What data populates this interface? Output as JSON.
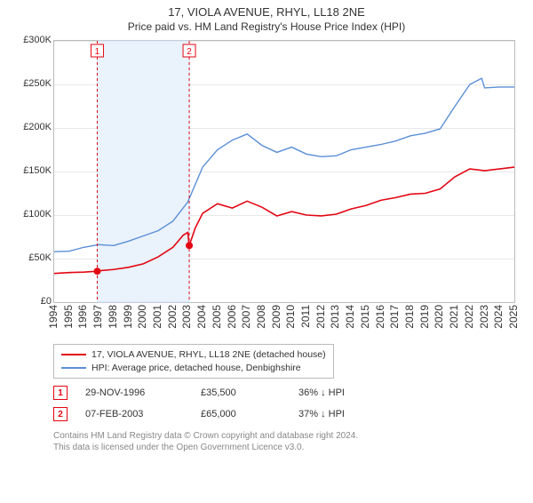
{
  "title": "17, VIOLA AVENUE, RHYL, LL18 2NE",
  "subtitle": "Price paid vs. HM Land Registry's House Price Index (HPI)",
  "chart": {
    "type": "line",
    "background_color": "#ffffff",
    "grid_color": "#e8e8e8",
    "axis_color": "#bbbbbb",
    "ylim": [
      0,
      300000
    ],
    "ytick_step": 50000,
    "yticks": [
      "£0",
      "£50K",
      "£100K",
      "£150K",
      "£200K",
      "£250K",
      "£300K"
    ],
    "xlim": [
      1994,
      2025
    ],
    "xticks": [
      1994,
      1995,
      1996,
      1997,
      1998,
      1999,
      2000,
      2001,
      2002,
      2003,
      2004,
      2005,
      2006,
      2007,
      2008,
      2009,
      2010,
      2011,
      2012,
      2013,
      2014,
      2015,
      2016,
      2017,
      2018,
      2019,
      2020,
      2021,
      2022,
      2023,
      2024,
      2025
    ],
    "band": {
      "from": 1996.9,
      "to": 2003.1,
      "fill": "#eaf2fb",
      "border": "#cfe2f6"
    },
    "series": [
      {
        "name": "17, VIOLA AVENUE, RHYL, LL18 2NE (detached house)",
        "color": "#e30613",
        "width": 1.6,
        "data": [
          [
            1994,
            33000
          ],
          [
            1995,
            34000
          ],
          [
            1996,
            34500
          ],
          [
            1996.9,
            35500
          ],
          [
            1997,
            36000
          ],
          [
            1998,
            37500
          ],
          [
            1999,
            40000
          ],
          [
            2000,
            44000
          ],
          [
            2001,
            52000
          ],
          [
            2002,
            63000
          ],
          [
            2002.7,
            77000
          ],
          [
            2003,
            80000
          ],
          [
            2003.1,
            65000
          ],
          [
            2003.5,
            85000
          ],
          [
            2004,
            102000
          ],
          [
            2005,
            113000
          ],
          [
            2006,
            108000
          ],
          [
            2007,
            116000
          ],
          [
            2008,
            109000
          ],
          [
            2009,
            99000
          ],
          [
            2010,
            104000
          ],
          [
            2011,
            100000
          ],
          [
            2012,
            99000
          ],
          [
            2013,
            101000
          ],
          [
            2014,
            107000
          ],
          [
            2015,
            111000
          ],
          [
            2016,
            117000
          ],
          [
            2017,
            120000
          ],
          [
            2018,
            124000
          ],
          [
            2019,
            125000
          ],
          [
            2020,
            130000
          ],
          [
            2021,
            144000
          ],
          [
            2022,
            153000
          ],
          [
            2023,
            151000
          ],
          [
            2024,
            153000
          ],
          [
            2025,
            155000
          ]
        ]
      },
      {
        "name": "HPI: Average price, detached house, Denbighshire",
        "color": "#5b8fd6",
        "width": 1.4,
        "data": [
          [
            1994,
            58000
          ],
          [
            1995,
            58500
          ],
          [
            1996,
            63000
          ],
          [
            1997,
            66000
          ],
          [
            1998,
            65000
          ],
          [
            1999,
            70000
          ],
          [
            2000,
            76000
          ],
          [
            2001,
            82000
          ],
          [
            2002,
            93000
          ],
          [
            2003,
            115000
          ],
          [
            2004,
            155000
          ],
          [
            2005,
            175000
          ],
          [
            2006,
            186000
          ],
          [
            2007,
            193000
          ],
          [
            2008,
            180000
          ],
          [
            2009,
            172000
          ],
          [
            2010,
            178000
          ],
          [
            2011,
            170000
          ],
          [
            2012,
            167000
          ],
          [
            2013,
            168000
          ],
          [
            2014,
            175000
          ],
          [
            2015,
            178000
          ],
          [
            2016,
            181000
          ],
          [
            2017,
            185000
          ],
          [
            2018,
            191000
          ],
          [
            2019,
            194000
          ],
          [
            2020,
            199000
          ],
          [
            2021,
            225000
          ],
          [
            2022,
            250000
          ],
          [
            2022.8,
            257000
          ],
          [
            2023,
            246000
          ],
          [
            2024,
            247000
          ],
          [
            2025,
            247000
          ]
        ]
      }
    ],
    "markers": [
      {
        "label": "1",
        "x": 1996.9,
        "y": 35500,
        "color": "#e30613",
        "line_dash": "3,3"
      },
      {
        "label": "2",
        "x": 2003.1,
        "y": 65000,
        "color": "#e30613",
        "line_dash": "3,3"
      }
    ]
  },
  "sales": [
    {
      "n": "1",
      "date": "29-NOV-1996",
      "price": "£35,500",
      "hpi": "36% ↓ HPI"
    },
    {
      "n": "2",
      "date": "07-FEB-2003",
      "price": "£65,000",
      "hpi": "37% ↓ HPI"
    }
  ],
  "footnote1": "Contains HM Land Registry data © Crown copyright and database right 2024.",
  "footnote2": "This data is licensed under the Open Government Licence v3.0."
}
